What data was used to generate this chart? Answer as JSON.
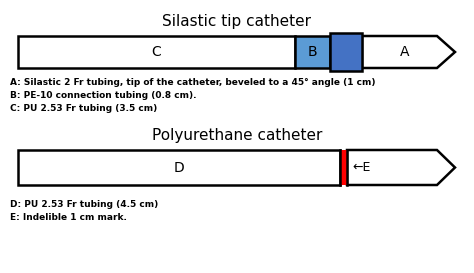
{
  "title1": "Silastic tip catheter",
  "title2": "Polyurethane catheter",
  "legend1": [
    "A: Silastic 2 Fr tubing, tip of the catheter, beveled to a 45° angle (1 cm)",
    "B: PE-10 connection tubing (0.8 cm).",
    "C: PU 2.53 Fr tubing (3.5 cm)"
  ],
  "legend2": [
    "D: PU 2.53 Fr tubing (4.5 cm)",
    "E: Indelible 1 cm mark."
  ],
  "bg_color": "#ffffff",
  "catheter1": {
    "body_color": "#ffffff",
    "outline_color": "#000000",
    "B_color": "#5b9bd5",
    "B2_color": "#4472c4",
    "label_C": "C",
    "label_B": "B",
    "label_A": "A"
  },
  "catheter2": {
    "body_color": "#ffffff",
    "outline_color": "#000000",
    "E_color": "#ff0000",
    "label_D": "D",
    "label_E": "←E"
  }
}
